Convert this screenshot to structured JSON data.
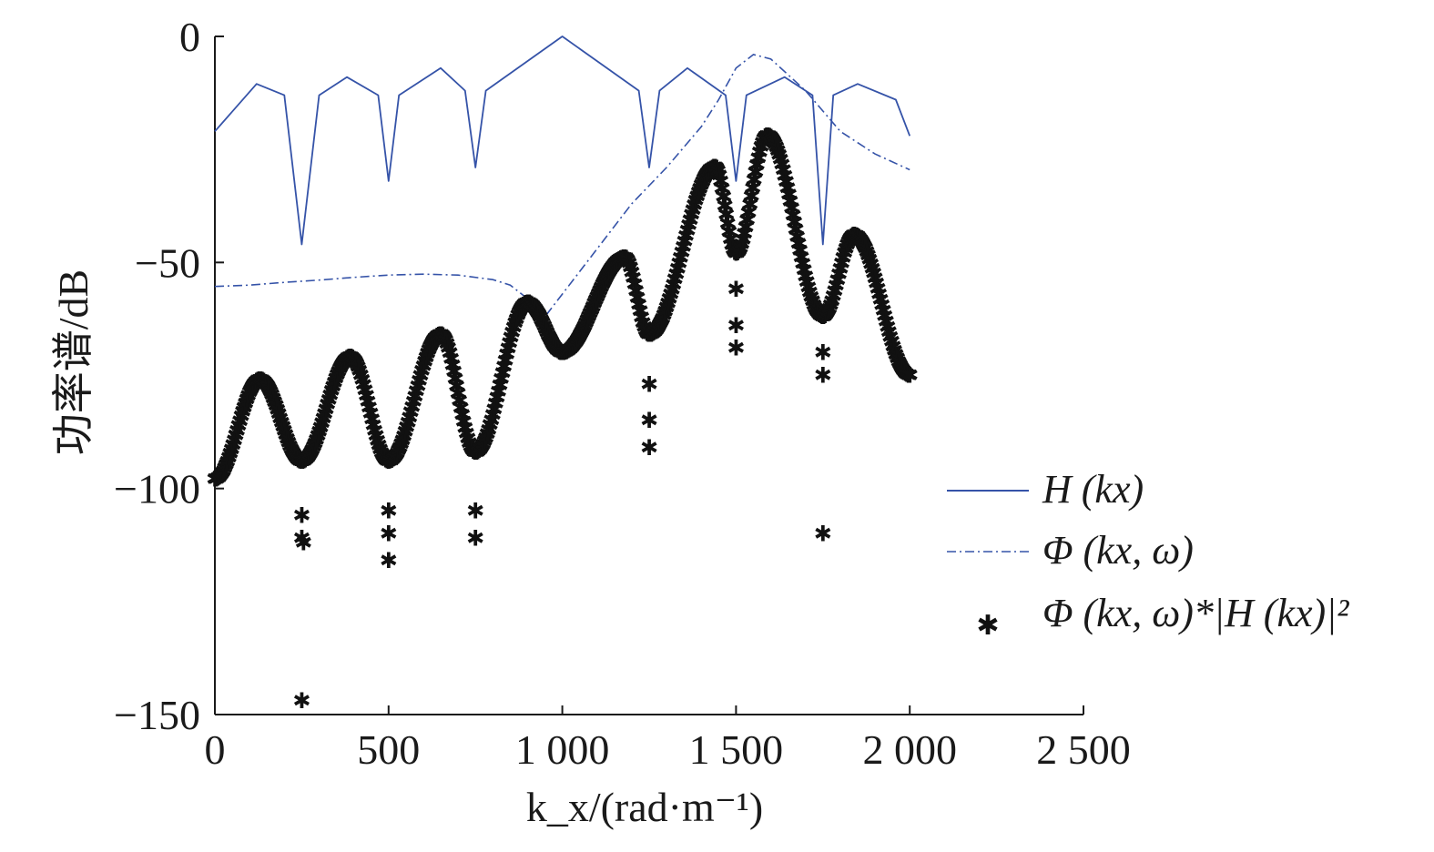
{
  "chart_data": {
    "type": "line",
    "xlabel": "k_x/(rad·m⁻¹)",
    "ylabel": "功率谱/dB",
    "xlim": [
      0,
      2500
    ],
    "ylim": [
      -150,
      0
    ],
    "x_ticks": [
      "0",
      "500",
      "1 000",
      "1 500",
      "2 000",
      "2 500"
    ],
    "y_ticks": [
      "0",
      "−50",
      "−100",
      "−150"
    ],
    "grid": false,
    "legend_position": "right",
    "series": [
      {
        "name": "H (kx)",
        "style": "solid",
        "color": "#3553a8",
        "x": [
          0,
          120,
          200,
          250,
          300,
          380,
          470,
          500,
          530,
          650,
          720,
          750,
          780,
          1000,
          1220,
          1250,
          1280,
          1360,
          1470,
          1500,
          1530,
          1640,
          1720,
          1750,
          1780,
          1850,
          1960,
          2000
        ],
        "y": [
          -21,
          -10.5,
          -13,
          -46,
          -13,
          -9,
          -13,
          -32,
          -13,
          -7,
          -12,
          -29,
          -12,
          0,
          -12,
          -29,
          -12,
          -7,
          -13,
          -32,
          -13,
          -9,
          -13,
          -46,
          -13,
          -10.5,
          -14,
          -22
        ]
      },
      {
        "name": "Φ (kx, ω)",
        "style": "dashdot",
        "color": "#3553a8",
        "x": [
          0,
          100,
          200,
          300,
          400,
          500,
          600,
          700,
          800,
          850,
          900,
          950,
          1000,
          1050,
          1100,
          1150,
          1200,
          1300,
          1400,
          1450,
          1500,
          1550,
          1600,
          1700,
          1800,
          1900,
          2000
        ],
        "y": [
          -55.3,
          -55,
          -54.4,
          -53.9,
          -53.3,
          -52.8,
          -52.6,
          -52.8,
          -53.8,
          -55,
          -58,
          -62,
          -57,
          -52,
          -47,
          -42,
          -37,
          -29,
          -20,
          -14,
          -7,
          -4,
          -5,
          -12,
          -21,
          -26,
          -29.5
        ]
      },
      {
        "name": "Φ (kx, ω)*|H (kx)|²",
        "style": "marker",
        "color": "#111111",
        "x": [
          0,
          130,
          250,
          390,
          500,
          650,
          750,
          900,
          1000,
          1180,
          1250,
          1440,
          1500,
          1590,
          1750,
          1840,
          2000
        ],
        "y": [
          -98,
          -76,
          -94,
          -71,
          -94,
          -66,
          -92,
          -59,
          -70,
          -49,
          -66,
          -29,
          -48,
          -22,
          -62,
          -44,
          -75
        ],
        "outliers": [
          {
            "x": 250,
            "y": -106
          },
          {
            "x": 250,
            "y": -111
          },
          {
            "x": 255,
            "y": -112
          },
          {
            "x": 250,
            "y": -147
          },
          {
            "x": 500,
            "y": -105
          },
          {
            "x": 500,
            "y": -110
          },
          {
            "x": 500,
            "y": -116
          },
          {
            "x": 750,
            "y": -105
          },
          {
            "x": 750,
            "y": -111
          },
          {
            "x": 1250,
            "y": -77
          },
          {
            "x": 1250,
            "y": -85
          },
          {
            "x": 1250,
            "y": -91
          },
          {
            "x": 1500,
            "y": -56
          },
          {
            "x": 1500,
            "y": -64
          },
          {
            "x": 1500,
            "y": -69
          },
          {
            "x": 1750,
            "y": -70
          },
          {
            "x": 1750,
            "y": -75
          },
          {
            "x": 1750,
            "y": -110
          }
        ]
      }
    ]
  }
}
